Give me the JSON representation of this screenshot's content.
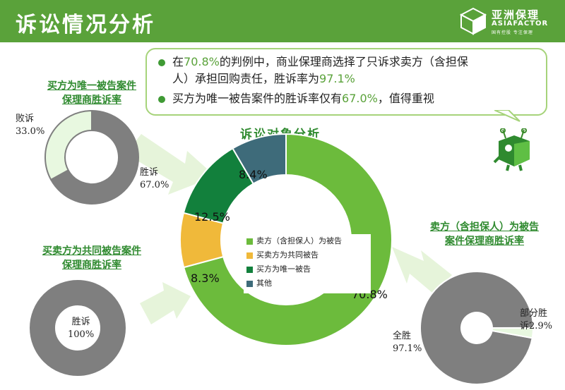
{
  "header": {
    "title": "诉讼情况分析",
    "logo_cn": "亚洲保理",
    "logo_en": "ASIAFACTOR",
    "logo_sub": "国有控股 专注保理"
  },
  "callout": {
    "line1_a": "在",
    "line1_hl": "70.8%",
    "line1_b": "的判例中，商业保理商选择了只诉求卖方（含担保",
    "line1_c": "人）承担回购责任，胜诉率为",
    "line1_hl2": "97.1%",
    "line2_a": "买方为唯一被告案件的胜诉率仅有",
    "line2_hl": "67.0%",
    "line2_b": "，值得重视"
  },
  "colors": {
    "header_green": "#5aa23a",
    "seller": "#6cbb3c",
    "joint": "#f0b93a",
    "buyer": "#12803c",
    "other": "#3e6b7a",
    "gray": "#7f7f7f",
    "lose_fill": "#e8f8e0"
  },
  "chart_data": [
    {
      "type": "pie",
      "title": "诉讼对象分析",
      "categories": [
        "卖方（含担保人）为被告",
        "买卖方为共同被告",
        "买方为唯一被告",
        "其他"
      ],
      "values": [
        70.8,
        8.3,
        12.5,
        8.4
      ],
      "labels": [
        "70.8%",
        "8.3%",
        "12.5%",
        "8.4%"
      ],
      "legend": "center"
    },
    {
      "type": "pie",
      "title": "买方为唯一被告案件保理商胜诉率",
      "categories": [
        "胜诉",
        "败诉"
      ],
      "values": [
        67.0,
        33.0
      ],
      "labels": [
        "67.0%",
        "33.0%"
      ]
    },
    {
      "type": "pie",
      "title": "买卖方为共同被告案件保理商胜诉率",
      "categories": [
        "胜诉"
      ],
      "values": [
        100
      ],
      "labels": [
        "100%"
      ]
    },
    {
      "type": "pie",
      "title": "卖方（含担保人）为被告案件保理商胜诉率",
      "categories": [
        "全胜",
        "部分胜诉"
      ],
      "values": [
        97.1,
        2.9
      ],
      "labels": [
        "97.1%",
        "2.9%"
      ]
    }
  ],
  "labels": {
    "tl_title_1": "买方为唯一被告案件",
    "tl_title_2": "保理商胜诉率",
    "tl_lose": "败诉",
    "tl_lose_pct": "33.0%",
    "tl_win": "胜诉",
    "tl_win_pct": "67.0%",
    "bl_title_1": "买卖方为共同被告案件",
    "bl_title_2": "保理商胜诉率",
    "bl_win": "胜诉",
    "bl_win_pct": "100%",
    "r_title_1": "卖方（含担保人）为被告",
    "r_title_2": "案件保理商胜诉率",
    "r_partial_1": "部分胜",
    "r_partial_2": "诉2.9%",
    "r_full": "全胜",
    "r_full_pct": "97.1%"
  }
}
